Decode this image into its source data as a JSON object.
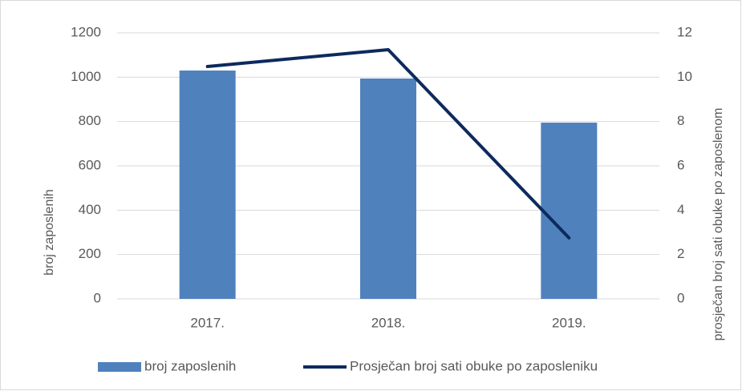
{
  "chart_data": {
    "type": "bar",
    "categories": [
      "2017.",
      "2018.",
      "2019."
    ],
    "series": [
      {
        "name": "broj zaposlenih",
        "color": "#4f81bd",
        "values": [
          1030,
          994,
          795
        ]
      },
      {
        "name": "Prosječan broj sati obuke po zaposleniku",
        "color": "#0d2a5e",
        "type": "line",
        "axis": "y2",
        "values": [
          10.48,
          11.24,
          2.75
        ]
      }
    ],
    "ylabel": "broj zaposlenih",
    "y2label": "prosječan broj sati obuke po zaposlenom",
    "ylim": [
      0,
      1200
    ],
    "yticks": [
      0,
      200,
      400,
      600,
      800,
      1000,
      1200
    ],
    "y2lim": [
      0,
      12
    ],
    "y2ticks": [
      0,
      2,
      4,
      6,
      8,
      10,
      12
    ],
    "grid": true,
    "legend": "bottom"
  }
}
